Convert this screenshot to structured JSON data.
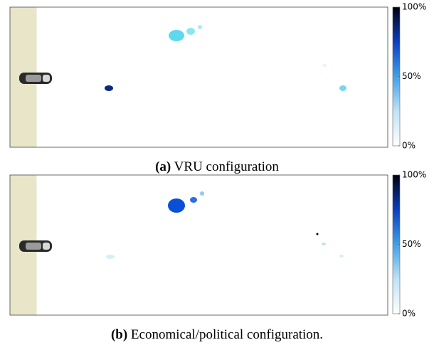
{
  "figure": {
    "panels": [
      {
        "label": "(a)",
        "caption": "VRU configuration",
        "colorbar": {
          "lim": [
            0,
            100
          ],
          "ticks": [
            {
              "value": 0,
              "label": "0%"
            },
            {
              "value": 50,
              "label": "50%"
            },
            {
              "value": 100,
              "label": "100%"
            }
          ]
        }
      },
      {
        "label": "(b)",
        "caption": "Economical/political configuration.",
        "colorbar": {
          "lim": [
            0,
            100
          ],
          "ticks": [
            {
              "value": 0,
              "label": "0%"
            },
            {
              "value": 50,
              "label": "50%"
            },
            {
              "value": 100,
              "label": "100%"
            }
          ]
        }
      }
    ]
  }
}
